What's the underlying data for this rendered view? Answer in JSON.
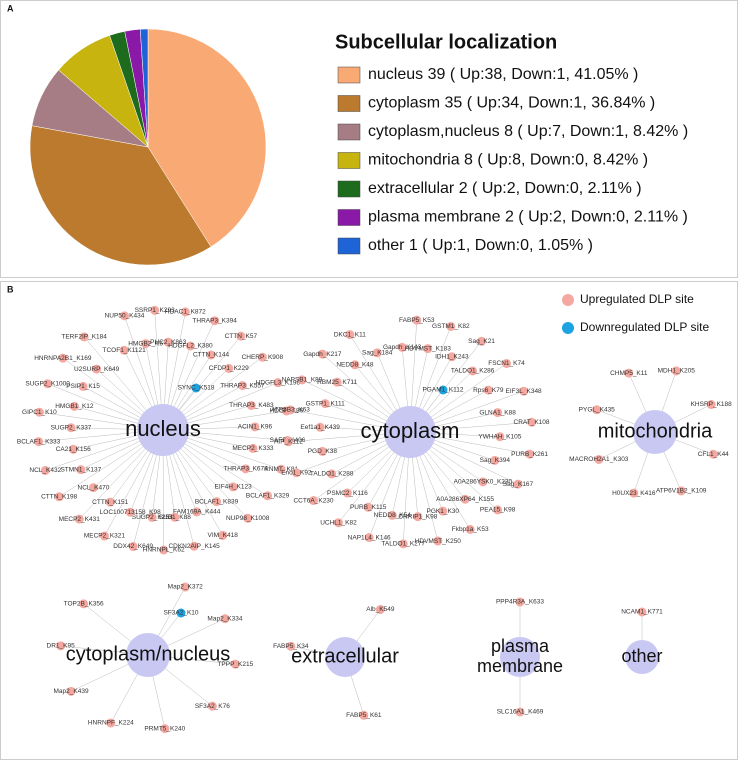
{
  "panel_labels": [
    "A",
    "B"
  ],
  "chart_data": {
    "type": "pie",
    "title": "Subcellular localization",
    "categories": [
      "nucleus 39 ( Up:38, Down:1, 41.05% )",
      "cytoplasm 35 ( Up:34, Down:1, 36.84% )",
      "cytoplasm,nucleus 8 ( Up:7, Down:1, 8.42% )",
      "mitochondria 8 ( Up:8, Down:0, 8.42% )",
      "extracellular 2 ( Up:2, Down:0, 2.11% )",
      "plasma membrane 2 ( Up:2, Down:0, 2.11% )",
      "other 1 ( Up:1, Down:0, 1.05% )"
    ],
    "values": [
      41.05,
      36.84,
      8.42,
      8.42,
      2.11,
      2.11,
      1.05
    ],
    "colors": [
      "#f9aa74",
      "#bb7a2e",
      "#a67c85",
      "#c8b40e",
      "#1d6b1d",
      "#8a19a8",
      "#1f64d6"
    ]
  },
  "network": {
    "legend": [
      {
        "label": "Upregulated DLP site",
        "color": "#f4a8a0"
      },
      {
        "label": "Downregulated DLP site",
        "color": "#1ea3e0"
      }
    ],
    "hubs": [
      {
        "label_lines": [
          "nucleus"
        ],
        "nodes": [
          "TCOF1_K1121",
          "NUP50_K434",
          "HMGB2_K6",
          "SSRP1_K293",
          "PHC2_K863",
          "HDAC1_K872",
          "HDGFL2_K380",
          "THRAP3_K394",
          "CTTN_K144",
          "CTTN_K57",
          "CFDP1_K229",
          "CHERP_K908",
          "THRAP3_K557",
          "HDGFL3_K198",
          "THRAP3_K483",
          "HDGF_K86",
          "ACIN1_K96",
          "SAFB_K406",
          "MECP2_K333",
          "RNMT_K81",
          "THRAP3_K674",
          "BCLAF1_K329",
          "EIF4H_K123",
          "NUP98_K1008",
          "BCLAF1_K839",
          "VIM_K418",
          "FAM169A_K444",
          "CDKN2AIP_K145",
          "SUB1_K88",
          "HNRNPL_K62",
          "SUGP2_K253",
          "DDX42_K649",
          "LOC100713158_K98",
          "MECP2_K321",
          "CTTN_K151",
          "MECP2_K431",
          "NCL_K470",
          "CTTN_K198",
          "STMN1_K137",
          "NCL_K432",
          "CA21_K156",
          "BCLAF1_K333",
          "SUGP2_K337",
          "GIPC1_K10",
          "HMGB1_K12",
          "SUGP2_K1000",
          "PSIP1_K15",
          "HNRNPA2B1_K169",
          "U2SURP_K649",
          "TERF2IP_K184"
        ],
        "down": [
          "SYNC_K518"
        ]
      },
      {
        "label_lines": [
          "cytoplasm"
        ],
        "nodes": [
          "Gapdh_K143",
          "FABP5_K53",
          "HDVMST_K183",
          "GSTM1_K82",
          "IDH1_K243",
          "Sag_K21",
          "TALDO1_K286",
          "FSCN1_K74",
          "Rps6_K79",
          "EIF3L_K348",
          "GLNA1_K88",
          "CRAT_K108",
          "YWHAH_K105",
          "PURB_K261",
          "Sag_K394",
          "Sag_K167",
          "A0A286YSK0_K230",
          "PEA15_K98",
          "A0A286XP64_K155",
          "Fkbp1a_K53",
          "PGK1_K30",
          "HDVMST_K250",
          "CNRIP1_K98",
          "TALDO1_K277",
          "NEDD8_K54",
          "NAP1L4_K146",
          "PURB_K115",
          "UCHL1_K82",
          "PSMC2_K116",
          "CCT6A_K230",
          "TALDO1_K288",
          "Eno1_K92",
          "PGD_K38",
          "AIP_K112",
          "Eef1a1_K439",
          "ATP5B3_K63",
          "GSTP1_K111",
          "NAPSB1_K89",
          "RBM25_K711",
          "Gapdh_K217",
          "NEDD8_K48",
          "DKC1_K11",
          "Sag_K184"
        ],
        "down": [
          "PGAM1_K112"
        ]
      },
      {
        "label_lines": [
          "mitochondria"
        ],
        "nodes": [
          "MDH1_K205",
          "KHSRP_K188",
          "CFL1_K44",
          "ATP6V1B2_K109",
          "H0UX23_K416",
          "MACROH2A1_K303",
          "PYGL_K435",
          "CHMP5_K11"
        ],
        "down": []
      },
      {
        "label_lines": [
          "cytoplasm/nucleus"
        ],
        "nodes": [
          "Map2_K372",
          "Map2_K334",
          "TPPP_K215",
          "SF3A2_K76",
          "PRMT5_K240",
          "HNRNPF_K224",
          "Map2_K439",
          "DR1_K95",
          "TOP2B_K356"
        ],
        "down": [
          "SF3A2_K10"
        ]
      },
      {
        "label_lines": [
          "extracellular"
        ],
        "nodes": [
          "Alb_K549",
          "FABP5_K61",
          "FABP5_K34"
        ],
        "down": []
      },
      {
        "label_lines": [
          "plasma",
          "membrane"
        ],
        "nodes": [
          "PPP4R3A_K633",
          "SLC16A1_K469"
        ],
        "down": []
      },
      {
        "label_lines": [
          "other"
        ],
        "nodes": [
          "NCAM1_K771"
        ],
        "down": []
      }
    ]
  }
}
